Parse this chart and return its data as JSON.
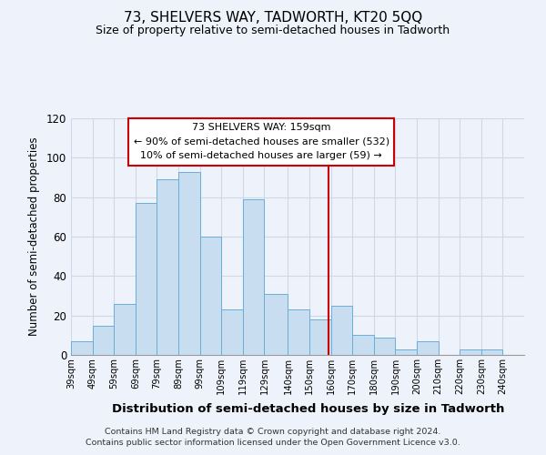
{
  "title": "73, SHELVERS WAY, TADWORTH, KT20 5QQ",
  "subtitle": "Size of property relative to semi-detached houses in Tadworth",
  "xlabel": "Distribution of semi-detached houses by size in Tadworth",
  "ylabel": "Number of semi-detached properties",
  "bin_labels": [
    "39sqm",
    "49sqm",
    "59sqm",
    "69sqm",
    "79sqm",
    "89sqm",
    "99sqm",
    "109sqm",
    "119sqm",
    "129sqm",
    "140sqm",
    "150sqm",
    "160sqm",
    "170sqm",
    "180sqm",
    "190sqm",
    "200sqm",
    "210sqm",
    "220sqm",
    "230sqm",
    "240sqm"
  ],
  "bin_edges": [
    39,
    49,
    59,
    69,
    79,
    89,
    99,
    109,
    119,
    129,
    140,
    150,
    160,
    170,
    180,
    190,
    200,
    210,
    220,
    230,
    240
  ],
  "counts": [
    7,
    15,
    26,
    77,
    89,
    93,
    60,
    23,
    79,
    31,
    23,
    18,
    25,
    10,
    9,
    3,
    7,
    0,
    3,
    3
  ],
  "bar_color": "#c8ddf0",
  "bar_edge_color": "#6aaed6",
  "property_line_x": 159,
  "property_line_color": "#cc0000",
  "ylim": [
    0,
    120
  ],
  "yticks": [
    0,
    20,
    40,
    60,
    80,
    100,
    120
  ],
  "annotation_title": "73 SHELVERS WAY: 159sqm",
  "annotation_line1": "← 90% of semi-detached houses are smaller (532)",
  "annotation_line2": "10% of semi-detached houses are larger (59) →",
  "footer_line1": "Contains HM Land Registry data © Crown copyright and database right 2024.",
  "footer_line2": "Contains public sector information licensed under the Open Government Licence v3.0.",
  "background_color": "#eef2fb",
  "grid_color": "#d0d8e8"
}
